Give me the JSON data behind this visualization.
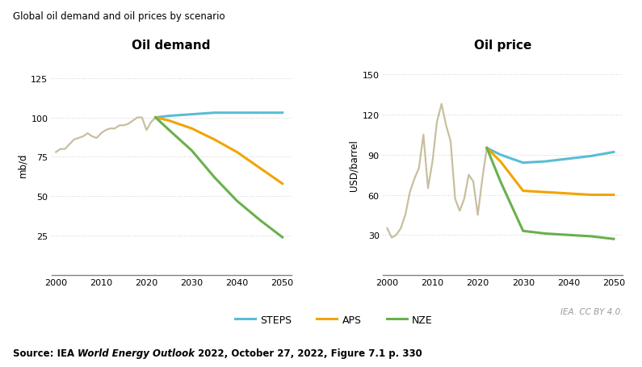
{
  "title": "Global oil demand and oil prices by scenario",
  "source_prefix": "Source: IEA ",
  "source_italic": "World Energy Outlook",
  "source_suffix": " 2022, October 27, 2022, Figure 7.1 p. 330",
  "credit": "IEA. CC BY 4.0.",
  "demand_title": "Oil demand",
  "price_title": "Oil price",
  "demand_ylabel": "mb/d",
  "price_ylabel": "USD/barrel",
  "years_hist": [
    2000,
    2001,
    2002,
    2003,
    2004,
    2005,
    2006,
    2007,
    2008,
    2009,
    2010,
    2011,
    2012,
    2013,
    2014,
    2015,
    2016,
    2017,
    2018,
    2019,
    2020,
    2021,
    2022
  ],
  "years_scen": [
    2022,
    2025,
    2030,
    2035,
    2040,
    2045,
    2050
  ],
  "demand_hist": [
    78,
    80,
    80,
    83,
    86,
    87,
    88,
    90,
    88,
    87,
    90,
    92,
    93,
    93,
    95,
    95,
    96,
    98,
    100,
    100,
    92,
    97,
    100
  ],
  "demand_steps": [
    100,
    101,
    102,
    103,
    103,
    103,
    103
  ],
  "demand_aps": [
    100,
    98,
    93,
    86,
    78,
    68,
    58
  ],
  "demand_nze": [
    100,
    92,
    79,
    62,
    47,
    35,
    24
  ],
  "price_hist": [
    35,
    28,
    30,
    35,
    45,
    62,
    72,
    80,
    105,
    65,
    85,
    115,
    128,
    112,
    100,
    57,
    48,
    57,
    75,
    70,
    45,
    72,
    95
  ],
  "price_steps": [
    95,
    90,
    84,
    85,
    87,
    89,
    92
  ],
  "price_aps": [
    95,
    85,
    63,
    62,
    61,
    60,
    60
  ],
  "price_nze": [
    95,
    70,
    33,
    31,
    30,
    29,
    27
  ],
  "color_hist": "#c8bfa0",
  "color_steps": "#5bbcd6",
  "color_aps": "#f0a500",
  "color_nze": "#6ab04c",
  "demand_ylim": [
    0,
    140
  ],
  "demand_yticks": [
    25,
    50,
    75,
    100,
    125
  ],
  "price_ylim": [
    0,
    165
  ],
  "price_yticks": [
    30,
    60,
    90,
    120,
    150
  ],
  "xlim": [
    1999,
    2052
  ],
  "xticks": [
    2000,
    2010,
    2020,
    2030,
    2040,
    2050
  ],
  "bg_color": "#ffffff",
  "line_width": 2.2,
  "hist_lw": 1.6,
  "grid_color": "#a0a0a0",
  "grid_lw": 0.5,
  "spine_color": "#808080"
}
